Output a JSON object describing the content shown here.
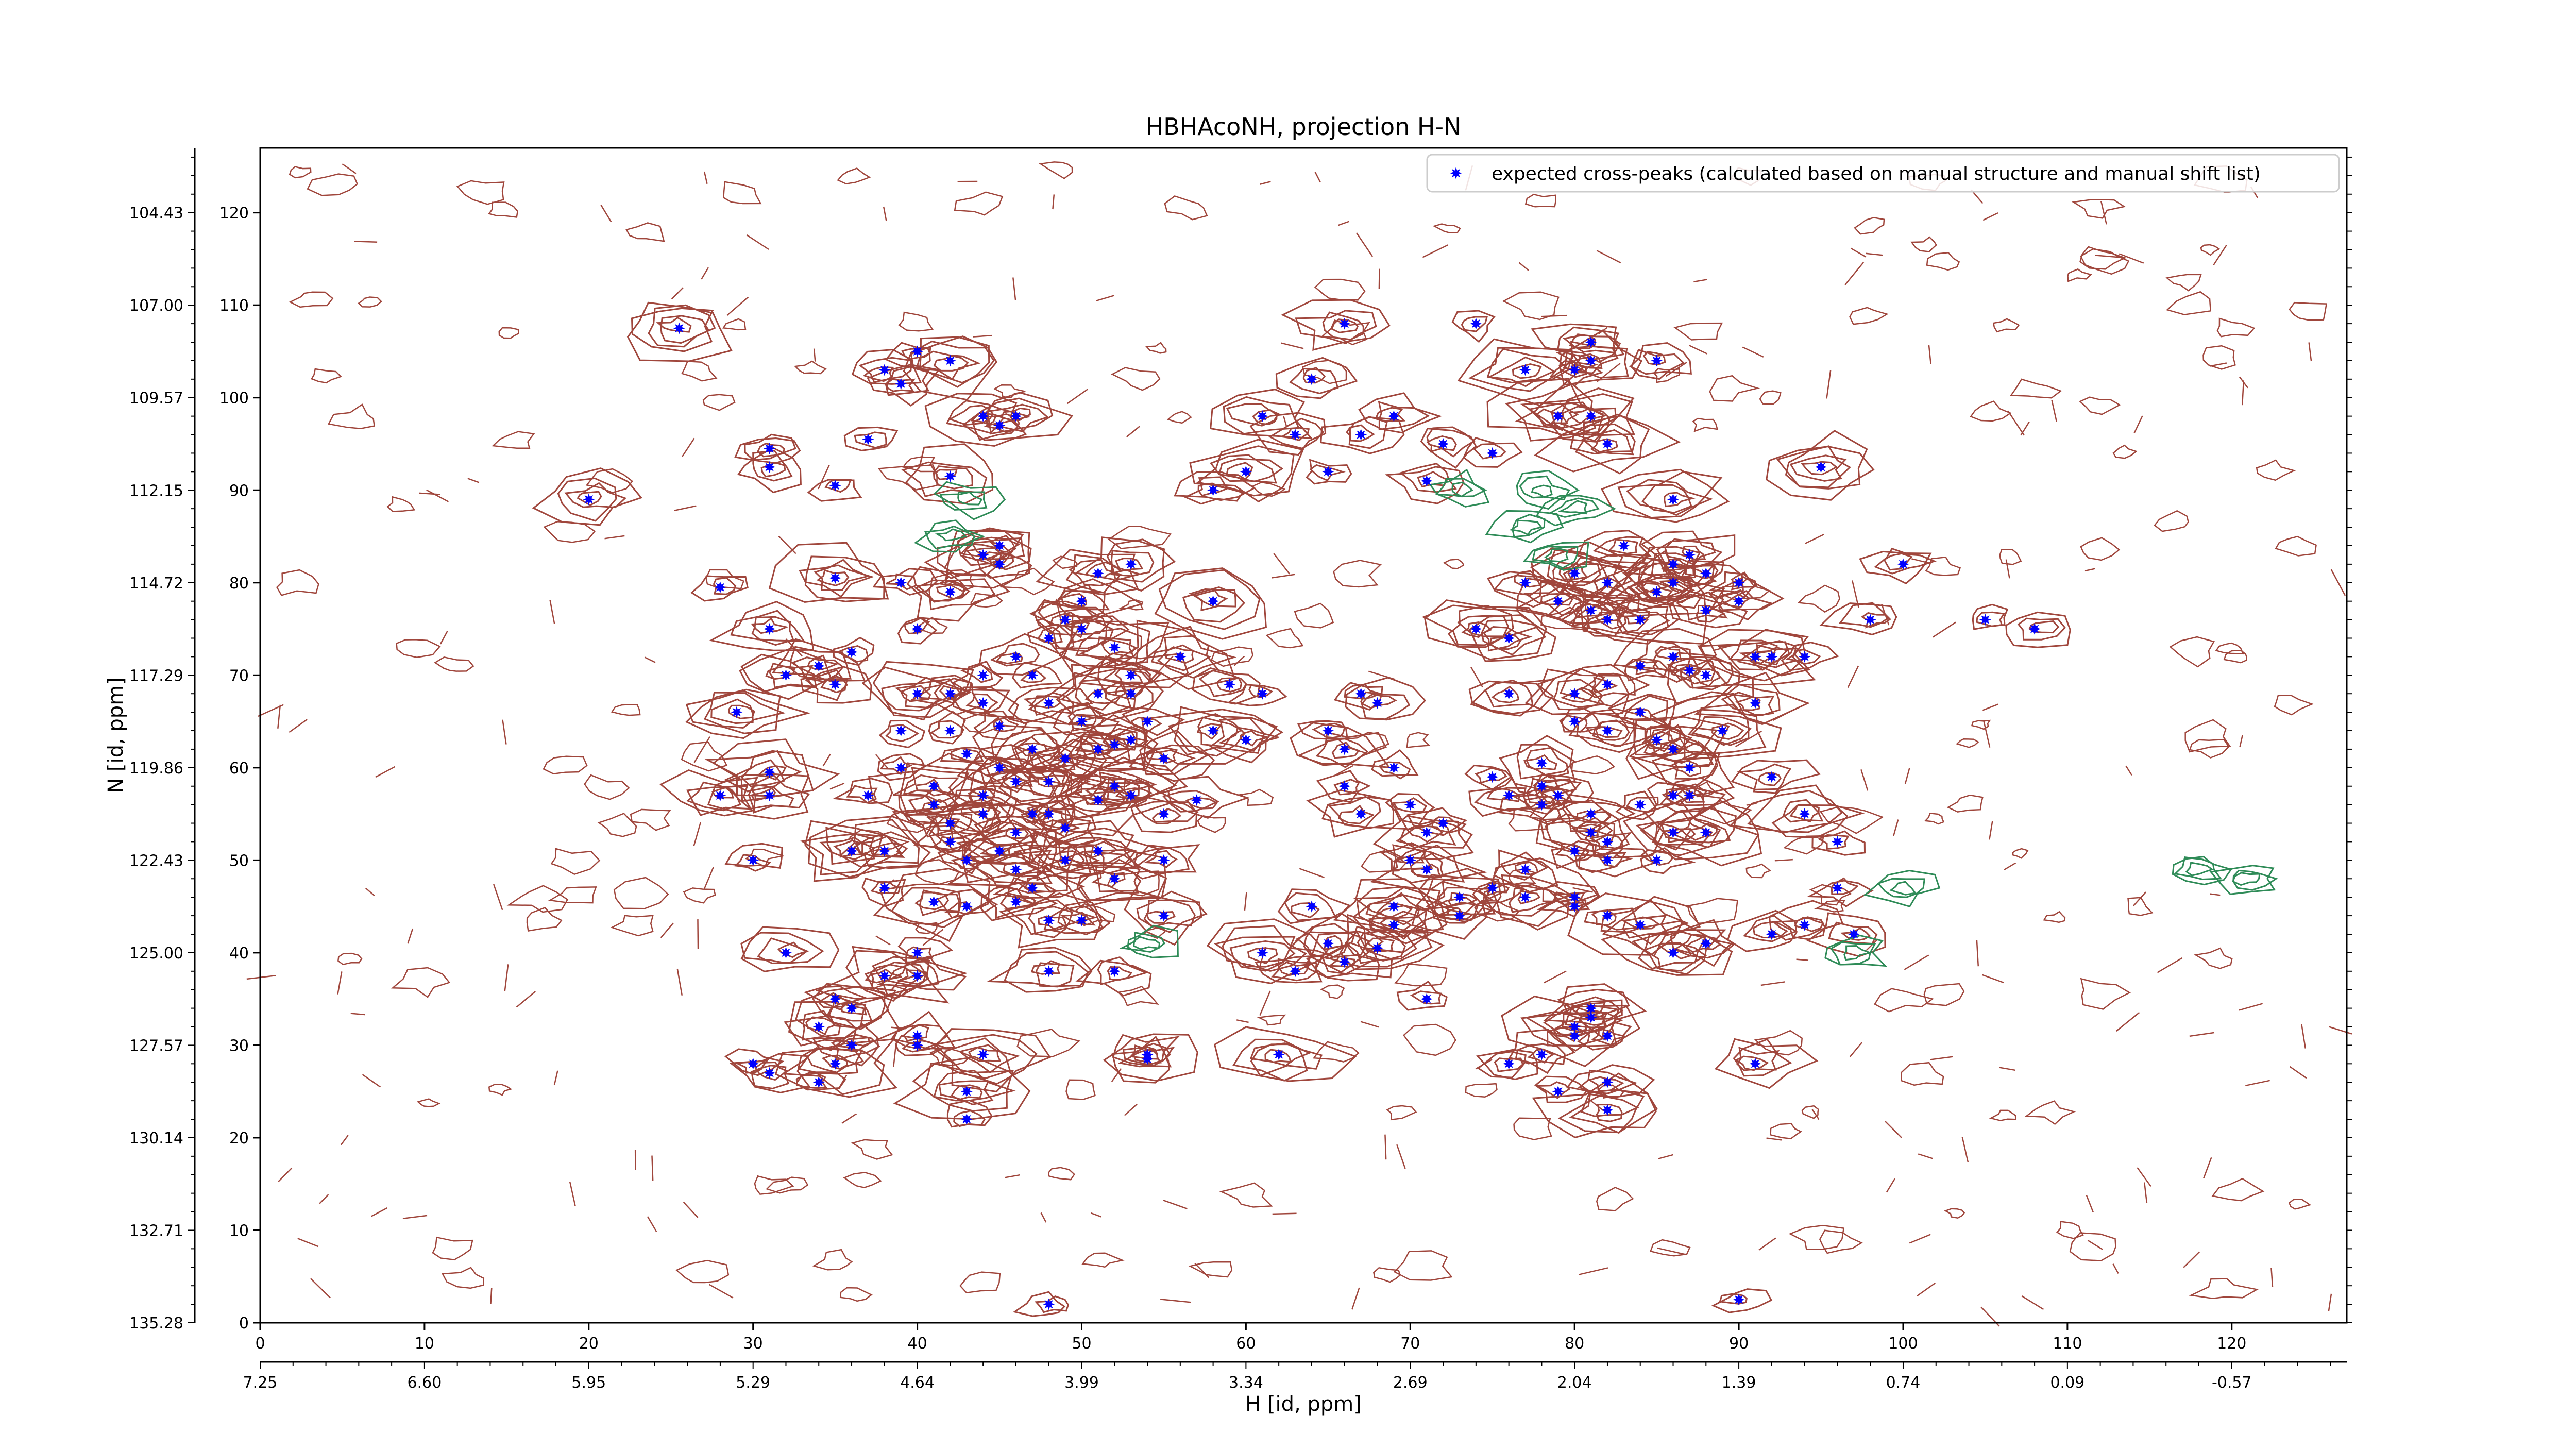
{
  "chart_data": {
    "type": "scatter",
    "title": "HBHAcoNH, projection H-N",
    "xlabel": "H [id, ppm]",
    "ylabel": "N [id, ppm]",
    "xlim": [
      0,
      127
    ],
    "ylim": [
      0,
      127
    ],
    "x_ticks": [
      0,
      10,
      20,
      30,
      40,
      50,
      60,
      70,
      80,
      90,
      100,
      110,
      120
    ],
    "y_ticks": [
      0,
      10,
      20,
      30,
      40,
      50,
      60,
      70,
      80,
      90,
      100,
      110,
      120
    ],
    "x_ppm_ticks": [
      {
        "pos": 0,
        "label": "7.25"
      },
      {
        "pos": 10,
        "label": "6.60"
      },
      {
        "pos": 20,
        "label": "5.95"
      },
      {
        "pos": 30,
        "label": "5.29"
      },
      {
        "pos": 40,
        "label": "4.64"
      },
      {
        "pos": 50,
        "label": "3.99"
      },
      {
        "pos": 60,
        "label": "3.34"
      },
      {
        "pos": 70,
        "label": "2.69"
      },
      {
        "pos": 80,
        "label": "2.04"
      },
      {
        "pos": 90,
        "label": "1.39"
      },
      {
        "pos": 100,
        "label": "0.74"
      },
      {
        "pos": 110,
        "label": "0.09"
      },
      {
        "pos": 120,
        "label": "-0.57"
      }
    ],
    "y_ppm_ticks": [
      {
        "pos": 0,
        "label": "135.28"
      },
      {
        "pos": 10,
        "label": "132.71"
      },
      {
        "pos": 20,
        "label": "130.14"
      },
      {
        "pos": 30,
        "label": "127.57"
      },
      {
        "pos": 40,
        "label": "125.00"
      },
      {
        "pos": 50,
        "label": "122.43"
      },
      {
        "pos": 60,
        "label": "119.86"
      },
      {
        "pos": 70,
        "label": "117.29"
      },
      {
        "pos": 80,
        "label": "114.72"
      },
      {
        "pos": 90,
        "label": "112.15"
      },
      {
        "pos": 100,
        "label": "109.57"
      },
      {
        "pos": 110,
        "label": "107.00"
      },
      {
        "pos": 120,
        "label": "104.43"
      }
    ],
    "legend": {
      "placement": "top-right",
      "label": "expected cross-peaks (calculated based on manual structure and manual shift list)"
    },
    "grid": false,
    "colors": {
      "peaks": "#0000ff",
      "contour_positive": "#a0463c",
      "contour_negative": "#2e8b57"
    },
    "series": [
      {
        "name": "expected cross-peaks (calculated based on manual structure and manual shift list)",
        "points": [
          [
            25.5,
            107.5
          ],
          [
            20,
            89
          ],
          [
            31,
            94.5
          ],
          [
            31,
            92.5
          ],
          [
            35,
            90.5
          ],
          [
            37,
            95.5
          ],
          [
            38,
            103
          ],
          [
            39,
            101.5
          ],
          [
            40,
            105
          ],
          [
            42,
            104
          ],
          [
            44,
            98
          ],
          [
            45,
            97
          ],
          [
            46,
            98
          ],
          [
            42,
            91.5
          ],
          [
            44,
            83
          ],
          [
            45,
            84
          ],
          [
            45,
            82
          ],
          [
            39,
            80
          ],
          [
            42,
            79
          ],
          [
            28,
            79.5
          ],
          [
            31,
            75
          ],
          [
            35,
            80.5
          ],
          [
            36,
            72.5
          ],
          [
            34,
            71
          ],
          [
            35,
            69
          ],
          [
            32,
            70
          ],
          [
            40,
            75
          ],
          [
            29,
            66
          ],
          [
            31,
            59.5
          ],
          [
            31,
            57
          ],
          [
            28,
            57
          ],
          [
            30,
            50
          ],
          [
            36,
            51
          ],
          [
            38,
            51
          ],
          [
            37,
            57
          ],
          [
            39,
            60
          ],
          [
            39,
            64
          ],
          [
            40,
            68
          ],
          [
            42,
            68
          ],
          [
            42,
            64
          ],
          [
            43,
            61.5
          ],
          [
            41,
            58
          ],
          [
            41,
            56
          ],
          [
            42,
            54
          ],
          [
            42,
            52
          ],
          [
            43,
            50
          ],
          [
            44,
            55
          ],
          [
            44,
            57
          ],
          [
            45,
            60
          ],
          [
            46,
            58.5
          ],
          [
            47,
            62
          ],
          [
            45,
            64.5
          ],
          [
            44,
            67
          ],
          [
            44,
            70
          ],
          [
            46,
            72
          ],
          [
            47,
            70
          ],
          [
            48,
            67
          ],
          [
            48,
            74
          ],
          [
            49,
            76
          ],
          [
            50,
            75
          ],
          [
            50,
            78
          ],
          [
            51,
            81
          ],
          [
            53,
            82
          ],
          [
            52,
            73
          ],
          [
            53,
            70
          ],
          [
            51,
            68
          ],
          [
            50,
            65
          ],
          [
            51,
            62
          ],
          [
            52,
            62.5
          ],
          [
            49,
            61
          ],
          [
            48,
            58.5
          ],
          [
            47,
            55
          ],
          [
            46,
            53
          ],
          [
            45,
            51
          ],
          [
            46,
            49
          ],
          [
            47,
            47
          ],
          [
            48,
            55
          ],
          [
            49,
            53.5
          ],
          [
            51,
            56.5
          ],
          [
            52,
            58
          ],
          [
            53,
            57
          ],
          [
            53,
            63
          ],
          [
            54,
            65
          ],
          [
            53,
            68
          ],
          [
            55,
            61
          ],
          [
            51,
            51
          ],
          [
            52,
            48
          ],
          [
            49,
            50
          ],
          [
            55,
            50
          ],
          [
            55,
            55
          ],
          [
            57,
            56.5
          ],
          [
            58,
            64
          ],
          [
            59,
            69
          ],
          [
            60,
            63
          ],
          [
            61,
            68
          ],
          [
            56,
            72
          ],
          [
            58,
            78
          ],
          [
            50,
            43.5
          ],
          [
            48,
            43.5
          ],
          [
            46,
            45.5
          ],
          [
            43,
            45
          ],
          [
            38,
            47
          ],
          [
            41,
            45.5
          ],
          [
            40,
            40
          ],
          [
            40,
            37.5
          ],
          [
            38,
            37.5
          ],
          [
            35,
            35
          ],
          [
            36,
            34
          ],
          [
            34,
            32
          ],
          [
            36,
            30
          ],
          [
            35,
            28
          ],
          [
            34,
            26
          ],
          [
            30,
            28
          ],
          [
            31,
            27
          ],
          [
            32,
            40
          ],
          [
            40,
            30
          ],
          [
            40,
            31
          ],
          [
            44,
            29
          ],
          [
            43,
            25
          ],
          [
            43,
            22
          ],
          [
            48,
            38
          ],
          [
            48,
            2
          ],
          [
            52,
            38
          ],
          [
            54,
            29
          ],
          [
            54,
            28.5
          ],
          [
            55,
            44
          ],
          [
            58,
            90
          ],
          [
            60,
            92
          ],
          [
            61,
            40
          ],
          [
            63,
            38
          ],
          [
            62,
            29
          ],
          [
            64,
            45
          ],
          [
            65,
            41
          ],
          [
            66,
            39
          ],
          [
            65,
            64
          ],
          [
            66,
            62
          ],
          [
            66,
            58
          ],
          [
            67,
            55
          ],
          [
            67,
            68
          ],
          [
            68,
            67
          ],
          [
            69,
            60
          ],
          [
            70,
            56
          ],
          [
            71,
            53
          ],
          [
            72,
            54
          ],
          [
            70,
            50
          ],
          [
            71,
            49
          ],
          [
            69,
            45
          ],
          [
            69,
            43
          ],
          [
            68,
            40.5
          ],
          [
            71,
            35
          ],
          [
            73,
            44
          ],
          [
            73,
            46
          ],
          [
            75,
            47
          ],
          [
            65,
            92
          ],
          [
            67,
            96
          ],
          [
            63,
            96
          ],
          [
            61,
            98
          ],
          [
            64,
            102
          ],
          [
            66,
            108
          ],
          [
            69,
            98
          ],
          [
            72,
            95
          ],
          [
            71,
            91
          ],
          [
            75,
            94
          ],
          [
            77,
            103
          ],
          [
            74,
            108
          ],
          [
            79,
            98
          ],
          [
            81,
            98
          ],
          [
            82,
            95
          ],
          [
            80,
            103
          ],
          [
            81,
            104
          ],
          [
            81,
            106
          ],
          [
            85,
            104
          ],
          [
            74,
            75
          ],
          [
            76,
            74
          ],
          [
            76,
            68
          ],
          [
            75,
            59
          ],
          [
            76,
            57
          ],
          [
            78,
            60.5
          ],
          [
            78,
            58
          ],
          [
            79,
            57
          ],
          [
            78,
            56
          ],
          [
            81,
            55
          ],
          [
            81,
            53
          ],
          [
            80,
            51
          ],
          [
            82,
            50
          ],
          [
            82,
            52
          ],
          [
            85,
            50
          ],
          [
            84,
            56
          ],
          [
            86,
            57
          ],
          [
            87,
            60
          ],
          [
            86,
            62
          ],
          [
            87,
            57
          ],
          [
            88,
            53
          ],
          [
            86,
            53
          ],
          [
            84,
            66
          ],
          [
            85,
            63
          ],
          [
            82,
            64
          ],
          [
            80,
            65
          ],
          [
            80,
            68
          ],
          [
            82,
            69
          ],
          [
            84,
            71
          ],
          [
            86,
            72
          ],
          [
            88,
            70
          ],
          [
            87,
            70.5
          ],
          [
            89,
            64
          ],
          [
            91,
            72
          ],
          [
            94,
            72
          ],
          [
            88,
            77
          ],
          [
            90,
            78
          ],
          [
            88,
            81
          ],
          [
            86,
            80
          ],
          [
            85,
            79
          ],
          [
            84,
            76
          ],
          [
            82,
            76
          ],
          [
            81,
            77
          ],
          [
            79,
            78
          ],
          [
            80,
            81
          ],
          [
            82,
            80
          ],
          [
            77,
            80
          ],
          [
            83,
            84
          ],
          [
            86,
            82
          ],
          [
            87,
            83
          ],
          [
            90,
            80
          ],
          [
            86,
            89
          ],
          [
            91,
            67
          ],
          [
            92,
            72
          ],
          [
            92,
            59
          ],
          [
            94,
            55
          ],
          [
            96,
            52
          ],
          [
            92,
            42
          ],
          [
            94,
            43
          ],
          [
            96,
            47
          ],
          [
            97,
            42
          ],
          [
            88,
            41
          ],
          [
            86,
            40
          ],
          [
            84,
            43
          ],
          [
            82,
            44
          ],
          [
            80,
            45
          ],
          [
            80,
            46
          ],
          [
            77,
            46
          ],
          [
            77,
            49
          ],
          [
            81,
            34
          ],
          [
            81,
            33
          ],
          [
            80,
            32
          ],
          [
            80,
            31
          ],
          [
            82,
            31
          ],
          [
            78,
            29
          ],
          [
            76,
            28
          ],
          [
            79,
            25
          ],
          [
            82,
            26
          ],
          [
            82,
            23
          ],
          [
            90,
            2.5
          ],
          [
            91,
            28
          ],
          [
            100,
            82
          ],
          [
            95,
            92.5
          ],
          [
            98,
            76
          ],
          [
            105,
            76
          ],
          [
            108,
            75
          ]
        ]
      }
    ]
  }
}
